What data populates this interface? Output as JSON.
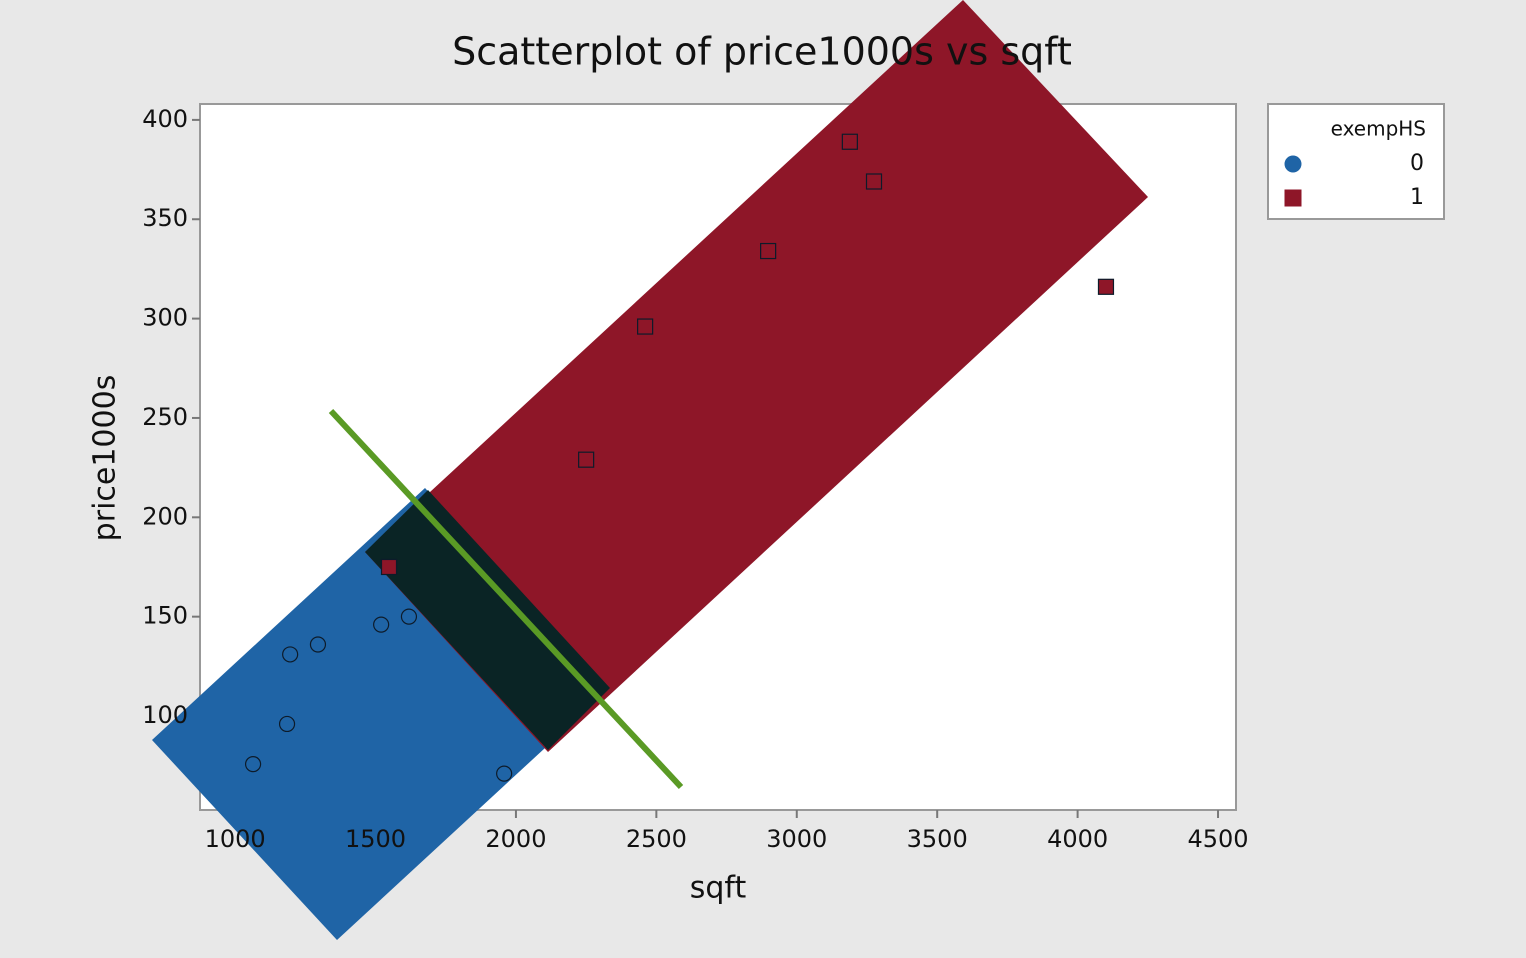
{
  "chart_data": {
    "type": "scatter",
    "title": "Scatterplot of price1000s vs sqft",
    "x_label": "sqft",
    "y_label": "price1000s",
    "legend_title": "exempHS",
    "legend": "outside-right",
    "xlim": [
      875,
      4564
    ],
    "xticks": [
      1000,
      1500,
      2000,
      2500,
      3000,
      3500,
      4000,
      4500
    ],
    "ylim": [
      52.7,
      408
    ],
    "yticks": [
      100,
      150,
      200,
      250,
      300,
      350,
      400
    ],
    "series": [
      {
        "name": "0",
        "color": "#1f64a6",
        "marker": "circle",
        "x": [
          1064,
          1185,
          1196,
          1295,
          1520,
          1619,
          1958
        ],
        "values": [
          75.8,
          96,
          131,
          136,
          146,
          150,
          71
        ]
      },
      {
        "name": "1",
        "color": "#8e1628",
        "marker": "square",
        "x": [
          1548,
          2250,
          2460,
          2898,
          3189,
          3275,
          4101
        ],
        "values": [
          175,
          229,
          296,
          334,
          389,
          369,
          316
        ]
      }
    ]
  }
}
